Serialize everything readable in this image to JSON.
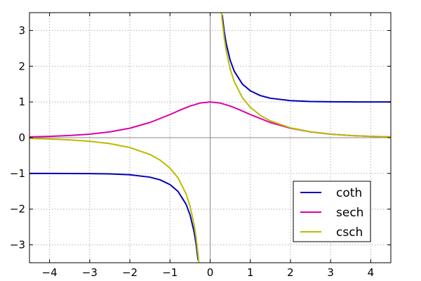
{
  "chart_data": {
    "type": "line",
    "title": "",
    "xlabel": "",
    "ylabel": "",
    "xlim": [
      -4.5,
      4.5
    ],
    "ylim": [
      -3.5,
      3.5
    ],
    "grid": true,
    "grid_style": "dotted",
    "axes_through_origin": true,
    "xticks": [
      -4,
      -3,
      -2,
      -1,
      0,
      1,
      2,
      3,
      4
    ],
    "yticks": [
      -3,
      -2,
      -1,
      0,
      1,
      2,
      3
    ],
    "xtick_labels": [
      "−4",
      "−3",
      "−2",
      "−1",
      "0",
      "1",
      "2",
      "3",
      "4"
    ],
    "ytick_labels": [
      "−3",
      "−2",
      "−1",
      "0",
      "1",
      "2",
      "3"
    ],
    "legend_position": "bottom-right",
    "series": [
      {
        "name": "coth",
        "color": "#0000bb",
        "x": [
          -4.5,
          -4,
          -3.5,
          -3,
          -2.5,
          -2,
          -1.5,
          -1.25,
          -1,
          -0.8,
          -0.6,
          -0.5,
          -0.4,
          -0.35,
          -0.3,
          null,
          0.3,
          0.35,
          0.4,
          0.5,
          0.6,
          0.8,
          1,
          1.25,
          1.5,
          2,
          2.5,
          3,
          3.5,
          4,
          4.5
        ],
        "y": [
          -1.0002,
          -1.0007,
          -1.0018,
          -1.005,
          -1.0135,
          -1.0373,
          -1.1048,
          -1.1789,
          -1.313,
          -1.5048,
          -1.862,
          -2.164,
          -2.6319,
          -2.977,
          -3.4327,
          null,
          3.4327,
          2.977,
          2.6319,
          2.164,
          1.862,
          1.5048,
          1.313,
          1.1789,
          1.1048,
          1.0373,
          1.0135,
          1.005,
          1.0018,
          1.0007,
          1.0002
        ]
      },
      {
        "name": "sech",
        "color": "#dd00aa",
        "x": [
          -4.5,
          -4,
          -3.5,
          -3,
          -2.5,
          -2,
          -1.5,
          -1,
          -0.75,
          -0.5,
          -0.25,
          0,
          0.25,
          0.5,
          0.75,
          1,
          1.5,
          2,
          2.5,
          3,
          3.5,
          4,
          4.5
        ],
        "y": [
          0.0222,
          0.0366,
          0.0603,
          0.0993,
          0.1631,
          0.2658,
          0.4251,
          0.6481,
          0.7724,
          0.8868,
          0.9695,
          1.0,
          0.9695,
          0.8868,
          0.7724,
          0.6481,
          0.4251,
          0.2658,
          0.1631,
          0.0993,
          0.0603,
          0.0366,
          0.0222
        ]
      },
      {
        "name": "csch",
        "color": "#bbbb00",
        "x": [
          -4.5,
          -4,
          -3.5,
          -3,
          -2.5,
          -2,
          -1.5,
          -1.25,
          -1,
          -0.8,
          -0.6,
          -0.5,
          -0.4,
          -0.35,
          -0.3,
          -0.28,
          null,
          0.28,
          0.3,
          0.35,
          0.4,
          0.5,
          0.6,
          0.8,
          1,
          1.25,
          1.5,
          2,
          2.5,
          3,
          3.5,
          4,
          4.5
        ],
        "y": [
          -0.0222,
          -0.0366,
          -0.0604,
          -0.0998,
          -0.1652,
          -0.2757,
          -0.4696,
          -0.6255,
          -0.8509,
          -1.1259,
          -1.5707,
          -1.919,
          -2.4346,
          -2.8002,
          -3.2838,
          -3.5244,
          null,
          3.5244,
          3.2838,
          2.8002,
          2.4346,
          1.919,
          1.5707,
          1.1259,
          0.8509,
          0.6255,
          0.4696,
          0.2757,
          0.1652,
          0.0998,
          0.0604,
          0.0366,
          0.0222
        ]
      }
    ]
  }
}
